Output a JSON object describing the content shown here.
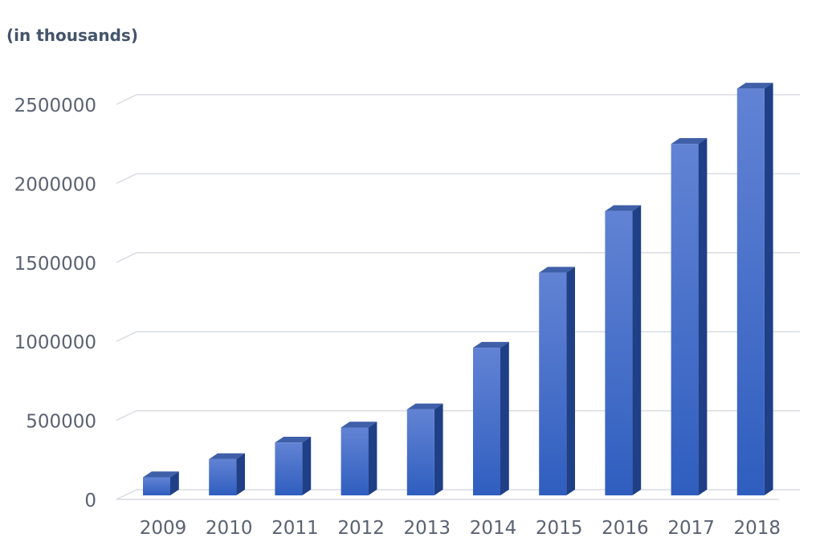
{
  "chart_data": {
    "type": "bar",
    "title": "",
    "unit_label": "(in thousands)",
    "xlabel": "",
    "ylabel": "",
    "categories": [
      "2009",
      "2010",
      "2011",
      "2012",
      "2013",
      "2014",
      "2015",
      "2016",
      "2017",
      "2018"
    ],
    "values": [
      140000,
      255000,
      360000,
      455000,
      570000,
      960000,
      1435000,
      1825000,
      2250000,
      2600000
    ],
    "ylim": [
      0,
      2500000
    ],
    "yticks": [
      "0",
      "500000",
      "1000000",
      "1500000",
      "2000000",
      "2500000"
    ],
    "grid": true,
    "legend": "none",
    "style": "3d-column",
    "colors": {
      "bar_top": "#6283d4",
      "bar_bottom": "#2f5ebf",
      "bar_side": "#1f3f86",
      "bar_cap": "#3f5fa8",
      "grid": "#d9dce2",
      "axis_text": "#5a6272"
    }
  }
}
